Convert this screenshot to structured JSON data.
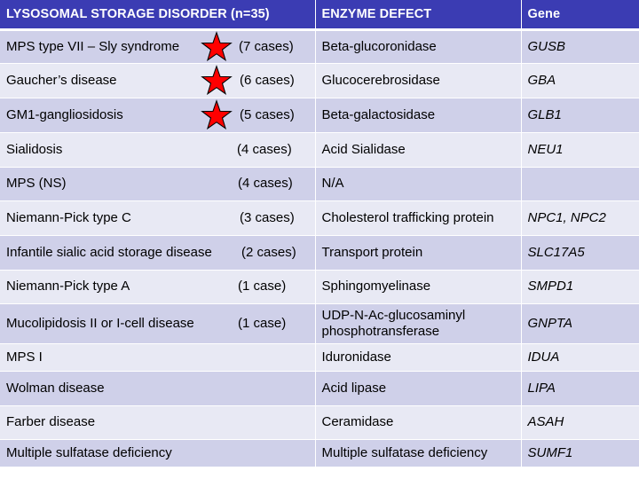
{
  "headers": {
    "disorder": "LYSOSOMAL STORAGE DISORDER (n=35)",
    "enzyme": "ENZYME DEFECT",
    "gene": "Gene"
  },
  "colors": {
    "header_bg": "#3b3cb3",
    "row_dark": "#cfd0e9",
    "row_light": "#e8e9f4",
    "star_fill": "#ff0000"
  },
  "rows": [
    {
      "disorder": "MPS type VII – Sly syndrome",
      "cases": "(7 cases)",
      "star": true,
      "enzyme": "Beta-glucoronidase",
      "gene": "GUSB"
    },
    {
      "disorder": "Gaucher’s disease",
      "cases": "(6 cases)",
      "star": true,
      "enzyme": "Glucocerebrosidase",
      "gene": "GBA"
    },
    {
      "disorder": "GM1-gangliosidosis",
      "cases": "(5 cases)",
      "star": true,
      "enzyme": "Beta-galactosidase",
      "gene": "GLB1"
    },
    {
      "disorder": "Sialidosis",
      "cases": "(4 cases)",
      "star": false,
      "enzyme": "Acid Sialidase",
      "gene": "NEU1"
    },
    {
      "disorder": "MPS (NS)",
      "cases": "(4 cases)",
      "star": false,
      "enzyme": "N/A",
      "gene": ""
    },
    {
      "disorder": "Niemann-Pick type C",
      "cases": "(3 cases)",
      "star": false,
      "enzyme": "Cholesterol trafficking protein",
      "gene": "NPC1, NPC2"
    },
    {
      "disorder": "Infantile sialic acid storage disease",
      "cases": "(2 cases)",
      "star": false,
      "enzyme": "Transport protein",
      "gene": "SLC17A5"
    },
    {
      "disorder": "Niemann-Pick type A",
      "cases": "(1 case)",
      "star": false,
      "enzyme": "Sphingomyelinase",
      "gene": "SMPD1"
    },
    {
      "disorder": "Mucolipidosis II or I-cell disease",
      "cases": "(1 case)",
      "star": false,
      "enzyme": "UDP-N-Ac-glucosaminyl phosphotransferase",
      "gene": "GNPTA"
    },
    {
      "disorder": "MPS I",
      "cases": "",
      "star": false,
      "enzyme": "Iduronidase",
      "gene": "IDUA"
    },
    {
      "disorder": "Wolman disease",
      "cases": "",
      "star": false,
      "enzyme": "Acid lipase",
      "gene": "LIPA"
    },
    {
      "disorder": "Farber disease",
      "cases": "",
      "star": false,
      "enzyme": "Ceramidase",
      "gene": "ASAH"
    },
    {
      "disorder": "Multiple sulfatase deficiency",
      "cases": "",
      "star": false,
      "enzyme": "Multiple sulfatase deficiency",
      "gene": "SUMF1"
    }
  ]
}
